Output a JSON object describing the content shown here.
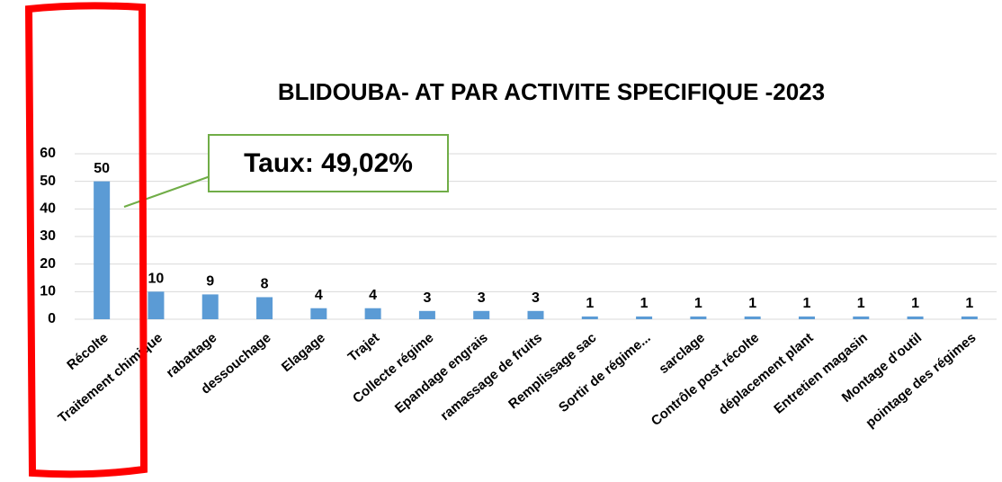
{
  "chart_data": {
    "type": "bar",
    "title": "BLIDOUBA- AT PAR ACTIVITE SPECIFIQUE -2023",
    "annotation": "Taux: 49,02%",
    "categories": [
      "Récolte",
      "Traitement chimique",
      "rabattage",
      "dessouchage",
      "Elagage",
      "Trajet",
      "Collecte régime",
      "Epandage engrais",
      "ramassage de fruits",
      "Remplissage sac",
      "Sortir de régime...",
      "sarclage",
      "Contrôle post récolte",
      "déplacement plant",
      "Entretien magasin",
      "Montage d'outil",
      "pointage des régimes"
    ],
    "values": [
      50,
      10,
      9,
      8,
      4,
      4,
      3,
      3,
      3,
      1,
      1,
      1,
      1,
      1,
      1,
      1,
      1
    ],
    "color": "#5b9bd5",
    "ylim": [
      0,
      60
    ],
    "yticks": [
      0,
      10,
      20,
      30,
      40,
      50,
      60
    ],
    "grid": true
  }
}
